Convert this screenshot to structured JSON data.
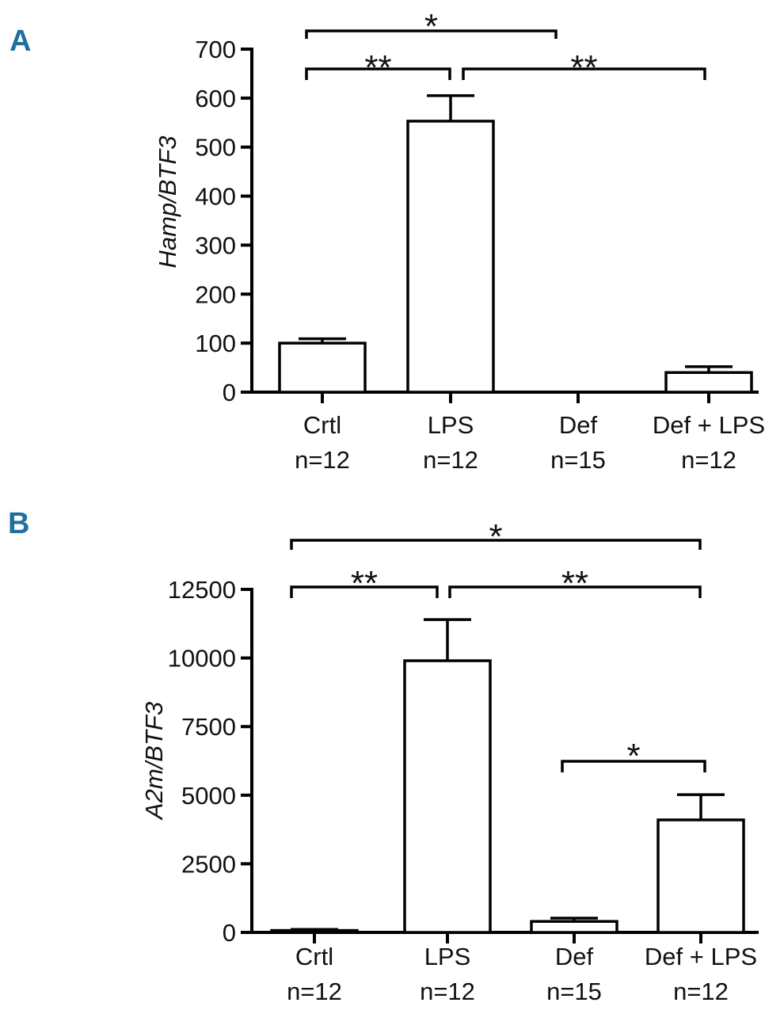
{
  "chart_data": [
    {
      "panel": "A",
      "type": "bar",
      "ylabel": "Hamp/BTF3",
      "ylim": [
        0,
        700
      ],
      "yticks": [
        "0",
        "100",
        "200",
        "300",
        "400",
        "500",
        "600",
        "700"
      ],
      "categories": [
        "Crtl",
        "LPS",
        "Def",
        "Def + LPS"
      ],
      "n_labels": [
        "n=12",
        "n=12",
        "n=15",
        "n=12"
      ],
      "values": [
        100,
        553,
        0,
        40
      ],
      "errors": [
        9,
        52,
        0,
        12
      ],
      "significance": [
        {
          "from": 0,
          "to": 2,
          "label": "*"
        },
        {
          "from": 0,
          "to": 1,
          "label": "**"
        },
        {
          "from": 1,
          "to": 3,
          "label": "**"
        }
      ]
    },
    {
      "panel": "B",
      "type": "bar",
      "ylabel": "A2m/BTF3",
      "ylim": [
        0,
        12500
      ],
      "yticks": [
        "0",
        "2500",
        "5000",
        "7500",
        "10000",
        "12500"
      ],
      "categories": [
        "Crtl",
        "LPS",
        "Def",
        "Def + LPS"
      ],
      "n_labels": [
        "n=12",
        "n=12",
        "n=15",
        "n=12"
      ],
      "values": [
        70,
        9900,
        400,
        4100
      ],
      "errors": [
        40,
        1500,
        120,
        920
      ],
      "significance": [
        {
          "from": 0,
          "to": 3,
          "label": "*"
        },
        {
          "from": 0,
          "to": 1,
          "label": "**"
        },
        {
          "from": 1,
          "to": 3,
          "label": "**"
        },
        {
          "from": 2,
          "to": 3,
          "label": "*"
        }
      ]
    }
  ]
}
